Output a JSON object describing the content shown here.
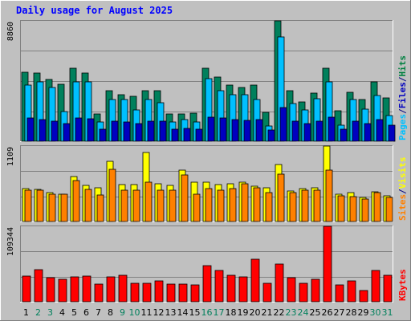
{
  "chart_data": {
    "type": "bar",
    "title": "Daily usage for August 2025",
    "categories": [
      "1",
      "2",
      "3",
      "4",
      "5",
      "6",
      "7",
      "8",
      "9",
      "10",
      "11",
      "12",
      "13",
      "14",
      "15",
      "16",
      "17",
      "18",
      "19",
      "20",
      "21",
      "22",
      "23",
      "24",
      "25",
      "26",
      "27",
      "28",
      "29",
      "30",
      "31"
    ],
    "weekend_days": [
      "2",
      "3",
      "9",
      "10",
      "16",
      "17",
      "23",
      "24",
      "30",
      "31"
    ],
    "panels": [
      {
        "id": "top",
        "ymax_label": "8860",
        "ymax": 8860,
        "legend": [
          {
            "text": "Pages",
            "color": "#00c0ff"
          },
          {
            "text": "/",
            "color": "#000080"
          },
          {
            "text": "Files",
            "color": "#0000c0"
          },
          {
            "text": "/",
            "color": "#000080"
          },
          {
            "text": "Hits",
            "color": "#008040"
          }
        ],
        "series": [
          {
            "name": "Hits",
            "color": "#00805c",
            "values": [
              5100,
              5050,
              4550,
              4200,
              5350,
              5000,
              2000,
              3750,
              3450,
              3300,
              3750,
              3700,
              2000,
              2000,
              2050,
              5350,
              4700,
              4150,
              3950,
              4150,
              2100,
              8860,
              3750,
              2900,
              3550,
              5350,
              2250,
              3600,
              3100,
              4350,
              3200
            ]
          },
          {
            "name": "Files",
            "color": "#00c0ff",
            "values": [
              4150,
              4400,
              3950,
              2200,
              4400,
              4400,
              1400,
              3050,
              3100,
              2300,
              3100,
              2850,
              1400,
              1600,
              1400,
              4600,
              3750,
              3450,
              3400,
              3050,
              1100,
              7700,
              2750,
              2300,
              3150,
              4400,
              1200,
              3050,
              2350,
              3350,
              1900
            ]
          },
          {
            "name": "Pages",
            "color": "#0000c0",
            "values": [
              1700,
              1600,
              1500,
              1300,
              1700,
              1650,
              900,
              1500,
              1400,
              1300,
              1500,
              1450,
              900,
              950,
              900,
              1800,
              1700,
              1600,
              1550,
              1600,
              800,
              2500,
              1500,
              1300,
              1450,
              1800,
              900,
              1450,
              1300,
              1600,
              1200
            ]
          }
        ]
      },
      {
        "id": "middle",
        "ymax_label": "1109",
        "ymax": 1109,
        "legend": [
          {
            "text": "Sites",
            "color": "#ff8000"
          },
          {
            "text": "/",
            "color": "#000080"
          },
          {
            "text": "Visits",
            "color": "#ffff00"
          }
        ],
        "series": [
          {
            "name": "Visits",
            "color": "#ffff00",
            "values": [
              480,
              470,
              430,
              400,
              660,
              530,
              490,
              880,
              540,
              540,
              1020,
              550,
              530,
              760,
              580,
              580,
              540,
              550,
              580,
              520,
              500,
              840,
              450,
              480,
              490,
              1109,
              400,
              430,
              350,
              440,
              380
            ]
          },
          {
            "name": "Sites",
            "color": "#ff8000",
            "values": [
              460,
              460,
              400,
              400,
              600,
              470,
              390,
              770,
              460,
              460,
              580,
              460,
              460,
              680,
              400,
              480,
              460,
              480,
              560,
              500,
              430,
              700,
              420,
              460,
              460,
              760,
              380,
              370,
              330,
              420,
              350
            ]
          }
        ]
      },
      {
        "id": "bottom",
        "ymax_label": "109344",
        "ymax": 109344,
        "legend": [
          {
            "text": "KBytes",
            "color": "#ff0000"
          }
        ],
        "series": [
          {
            "name": "KBytes",
            "color": "#ff0000",
            "values": [
              37000,
              47000,
              35000,
              32000,
              36000,
              37000,
              26000,
              36000,
              38000,
              27000,
              27000,
              30000,
              26000,
              26000,
              25000,
              52000,
              45000,
              38000,
              36000,
              62000,
              27000,
              55000,
              35000,
              27000,
              32000,
              109344,
              25000,
              30000,
              16000,
              45000,
              38000
            ]
          }
        ]
      }
    ]
  }
}
